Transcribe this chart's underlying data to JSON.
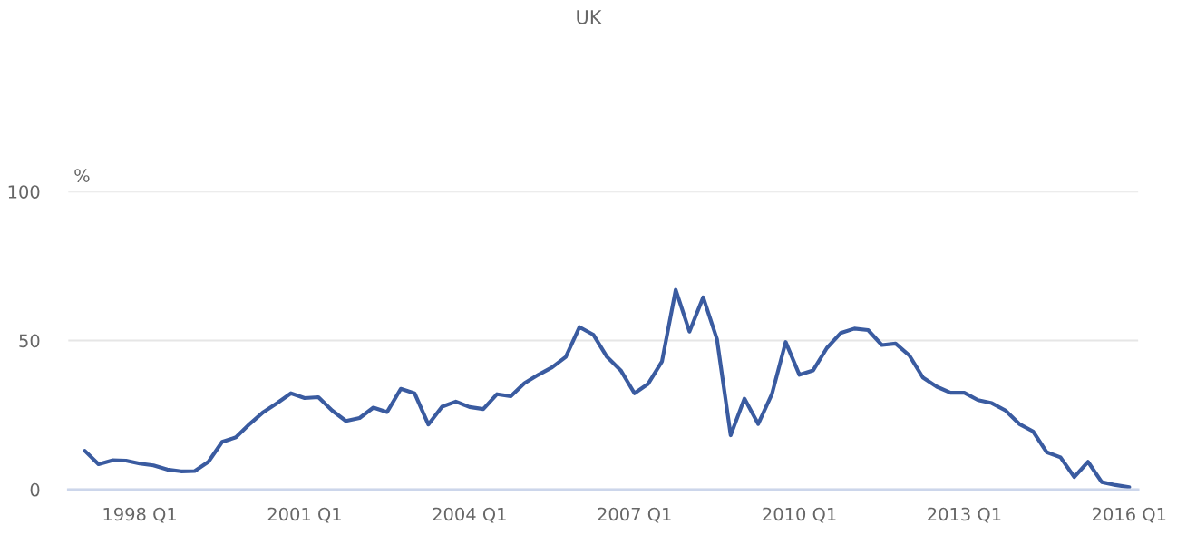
{
  "chart_data": {
    "type": "line",
    "title": "UK",
    "ylabel": "%",
    "categories": [
      null,
      null,
      null,
      null,
      "1998 Q1",
      null,
      null,
      null,
      null,
      null,
      null,
      null,
      null,
      null,
      null,
      null,
      "2001 Q1",
      null,
      null,
      null,
      null,
      null,
      null,
      null,
      null,
      null,
      null,
      null,
      "2004 Q1",
      null,
      null,
      null,
      null,
      null,
      null,
      null,
      null,
      null,
      null,
      null,
      "2007 Q1",
      null,
      null,
      null,
      null,
      null,
      null,
      null,
      null,
      null,
      null,
      null,
      "2010 Q1",
      null,
      null,
      null,
      null,
      null,
      null,
      null,
      null,
      null,
      null,
      null,
      "2013 Q1",
      null,
      null,
      null,
      null,
      null,
      null,
      null,
      null,
      null,
      null,
      null,
      "2016 Q1"
    ],
    "series": [
      {
        "color": "#3a5ba0",
        "values": [
          13,
          8.5,
          9.8,
          9.7,
          8.7,
          8.1,
          6.7,
          6.1,
          6.2,
          9.3,
          16,
          17.5,
          22,
          26,
          29,
          32.3,
          30.7,
          31,
          26.5,
          23,
          24,
          27.5,
          26,
          33.8,
          32.3,
          21.8,
          27.8,
          29.5,
          27.7,
          27,
          32,
          31.3,
          35.7,
          38.5,
          41,
          44.5,
          54.5,
          52,
          44.5,
          40,
          32.3,
          35.5,
          43,
          67,
          53,
          64.5,
          50.5,
          18.2,
          30.5,
          22,
          32,
          49.5,
          38.5,
          40,
          47.5,
          52.5,
          54,
          53.5,
          48.5,
          49,
          45,
          37.5,
          34.5,
          32.5,
          32.5,
          30,
          29,
          26.5,
          22,
          19.5,
          12.5,
          10.8,
          4.2,
          9.3,
          2.5,
          1.5,
          0.8
        ]
      }
    ],
    "ylim": [
      0,
      100
    ],
    "yticks": [
      0,
      50,
      100
    ],
    "grid": "y",
    "marker": "none",
    "line_style": "solid"
  }
}
